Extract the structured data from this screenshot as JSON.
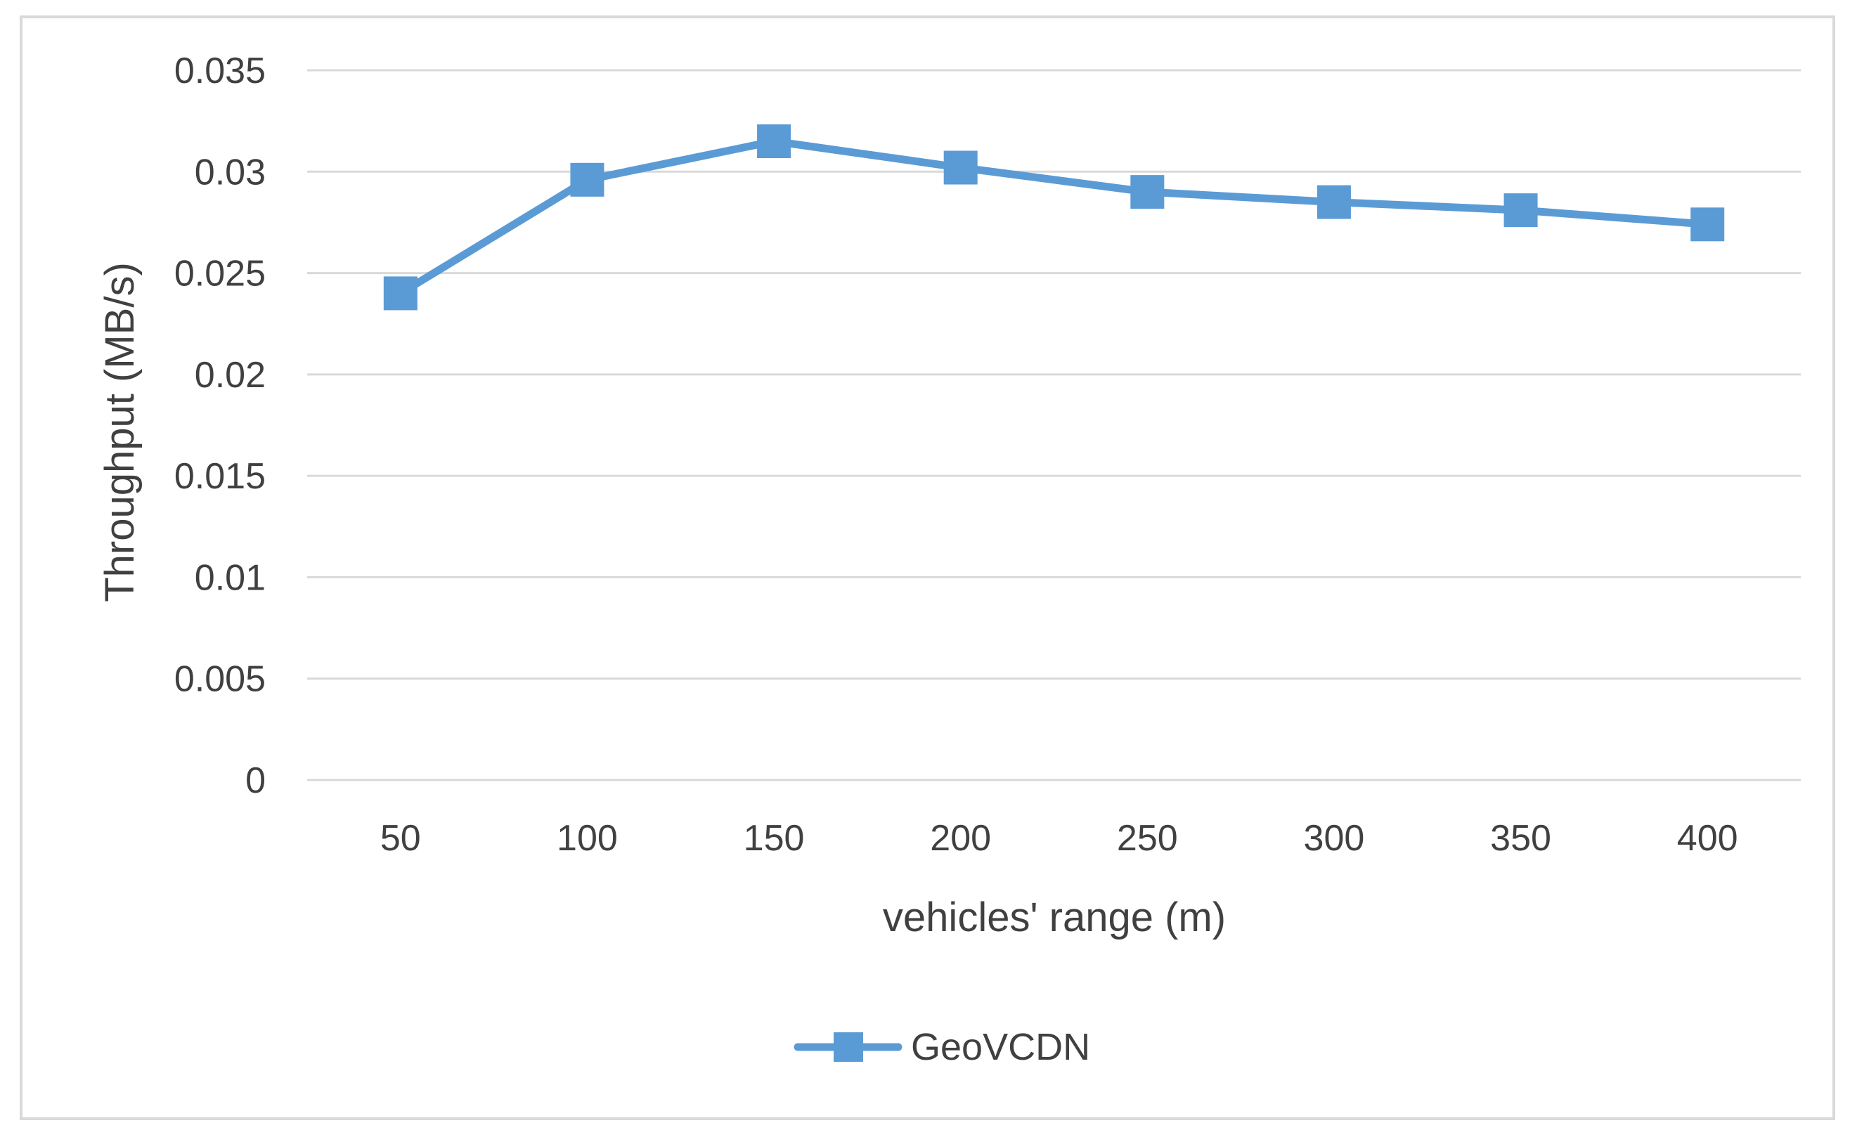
{
  "chart_data": {
    "type": "line",
    "title": "",
    "xlabel": "vehicles' range (m)",
    "ylabel": "Throughput (MB/s)",
    "categories": [
      "50",
      "100",
      "150",
      "200",
      "250",
      "300",
      "350",
      "400"
    ],
    "ylim": [
      0,
      0.035
    ],
    "yticks": [
      "0",
      "0.005",
      "0.01",
      "0.015",
      "0.02",
      "0.025",
      "0.03",
      "0.035"
    ],
    "ytick_values": [
      0,
      0.005,
      0.01,
      0.015,
      0.02,
      0.025,
      0.03,
      0.035
    ],
    "grid": true,
    "legend_position": "bottom",
    "series": [
      {
        "name": "GeoVCDN",
        "color": "#5b9bd5",
        "marker": "square",
        "values": [
          0.024,
          0.0296,
          0.0315,
          0.0302,
          0.029,
          0.0285,
          0.0281,
          0.0274
        ]
      }
    ]
  }
}
